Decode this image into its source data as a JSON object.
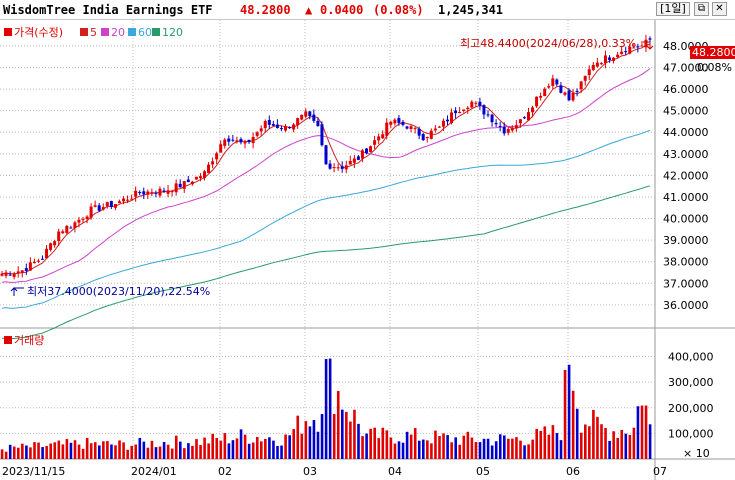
{
  "title": {
    "name": "WisdomTree India Earnings ETF",
    "price": "48.2800",
    "change_icon": "up-triangle-icon",
    "change": "0.0400",
    "change_pct": "(0.08%)",
    "volume": "1,245,341",
    "period_button": "[1일]"
  },
  "legend": {
    "price_label": "가격(수정)",
    "ma": [
      "5",
      "20",
      "60",
      "120"
    ],
    "volume_label": "거래량"
  },
  "annotations": {
    "high": "최고48.4400(2024/06/28),0.33%",
    "low": "최저37.4000(2023/11/20),22.54%"
  },
  "price_axis": {
    "current_label": "48.2800",
    "pct_label": "0.08%",
    "ticks": [
      "48.0000",
      "47.0000",
      "46.0000",
      "45.0000",
      "44.0000",
      "43.0000",
      "42.0000",
      "41.0000",
      "40.0000",
      "39.0000",
      "38.0000",
      "37.0000",
      "36.0000"
    ]
  },
  "volume_axis": {
    "ticks": [
      "400,000",
      "300,000",
      "200,000",
      "100,000"
    ],
    "multiplier": "× 10"
  },
  "x_axis": {
    "labels": [
      "2023/11/15",
      "2024/01",
      "02",
      "03",
      "04",
      "05",
      "06",
      "07"
    ]
  },
  "colors": {
    "up": "#e00000",
    "down": "#0000cc",
    "ma5": "#d02020",
    "ma20": "#cc44cc",
    "ma60": "#3aa8d8",
    "ma120": "#2a9a6a",
    "grid": "#bdbdbd",
    "current_box": "#e00000"
  },
  "chart_data": {
    "type": "candlestick",
    "title": "WisdomTree India Earnings ETF",
    "y_range": [
      35.3,
      49.2
    ],
    "volume_range": [
      0,
      480000
    ],
    "anchor_dates": [
      "2023/11/15",
      "2024/01",
      "02",
      "03",
      "04",
      "05",
      "06",
      "07"
    ],
    "close_path": [
      [
        0,
        37.45
      ],
      [
        5,
        37.6
      ],
      [
        10,
        38.2
      ],
      [
        14,
        39.4
      ],
      [
        18,
        39.8
      ],
      [
        22,
        40.4
      ],
      [
        28,
        40.7
      ],
      [
        34,
        41.2
      ],
      [
        40,
        41.3
      ],
      [
        45,
        41.6
      ],
      [
        50,
        42.1
      ],
      [
        55,
        43.8
      ],
      [
        60,
        43.4
      ],
      [
        65,
        44.4
      ],
      [
        70,
        44.2
      ],
      [
        75,
        44.8
      ],
      [
        78,
        44.2
      ],
      [
        80,
        42.5
      ],
      [
        84,
        42.4
      ],
      [
        88,
        42.8
      ],
      [
        92,
        43.6
      ],
      [
        96,
        44.5
      ],
      [
        100,
        44.3
      ],
      [
        104,
        43.8
      ],
      [
        108,
        44.2
      ],
      [
        112,
        45.0
      ],
      [
        116,
        45.4
      ],
      [
        120,
        44.8
      ],
      [
        124,
        44.1
      ],
      [
        128,
        44.5
      ],
      [
        132,
        45.6
      ],
      [
        136,
        46.5
      ],
      [
        138,
        46.0
      ],
      [
        140,
        45.5
      ],
      [
        143,
        46.2
      ],
      [
        146,
        47.2
      ],
      [
        150,
        47.5
      ],
      [
        154,
        47.9
      ],
      [
        158,
        48.0
      ],
      [
        160,
        48.28
      ]
    ],
    "volume_path": [
      [
        0,
        40000
      ],
      [
        10,
        50000
      ],
      [
        20,
        60000
      ],
      [
        30,
        55000
      ],
      [
        40,
        65000
      ],
      [
        50,
        70000
      ],
      [
        60,
        90000
      ],
      [
        70,
        80000
      ],
      [
        75,
        160000
      ],
      [
        78,
        170000
      ],
      [
        80,
        330000
      ],
      [
        90,
        90000
      ],
      [
        100,
        90000
      ],
      [
        110,
        80000
      ],
      [
        120,
        75000
      ],
      [
        130,
        80000
      ],
      [
        138,
        110000
      ],
      [
        140,
        420000
      ],
      [
        143,
        160000
      ],
      [
        150,
        110000
      ],
      [
        156,
        120000
      ],
      [
        158,
        270000
      ],
      [
        160,
        120000
      ]
    ]
  }
}
